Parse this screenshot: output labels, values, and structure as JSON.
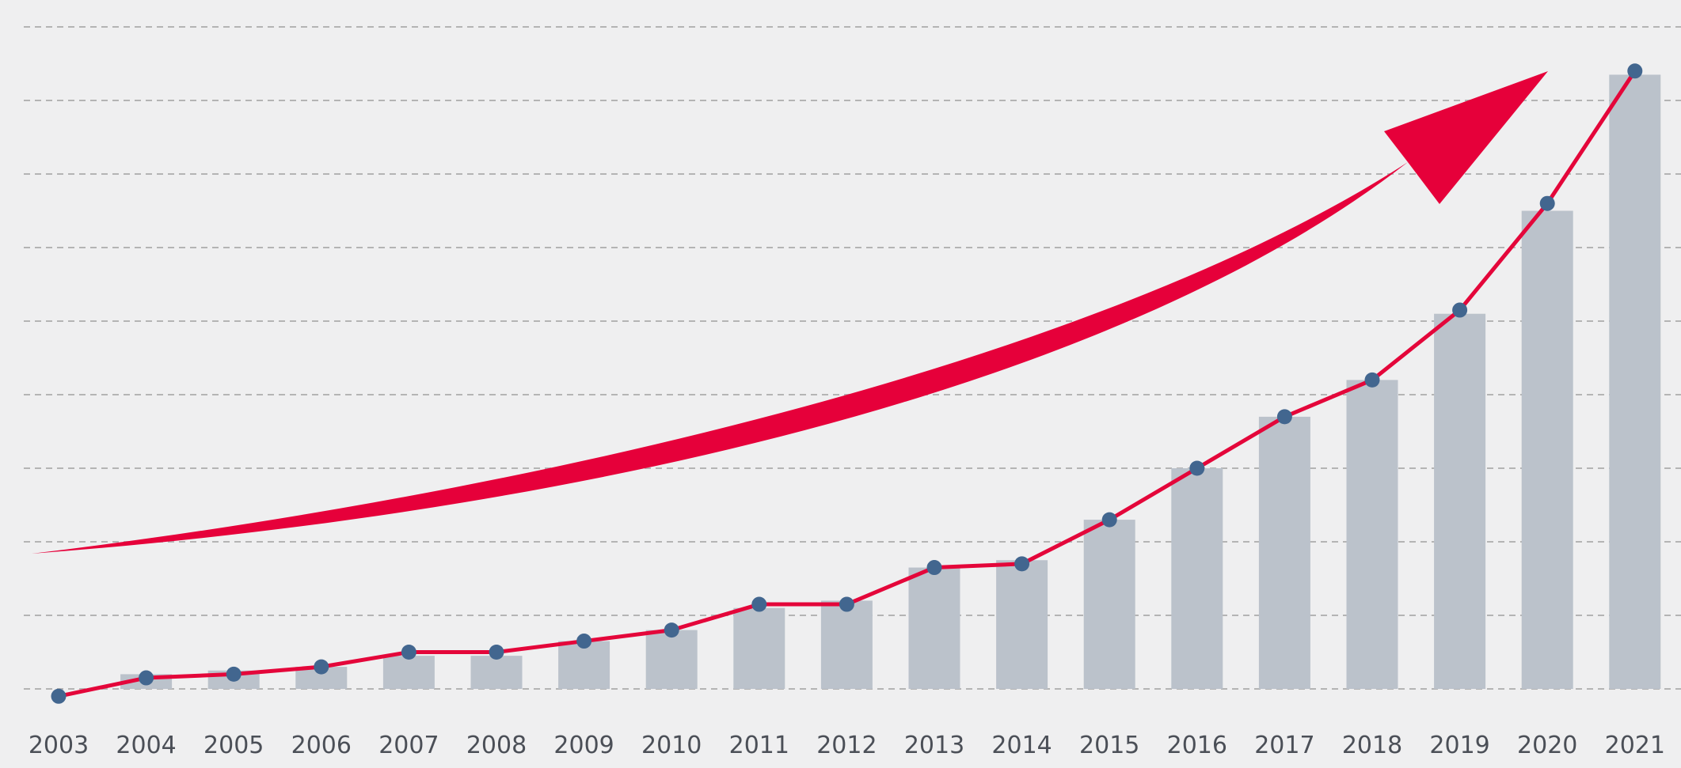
{
  "chart_data": {
    "type": "bar",
    "title": "",
    "xlabel": "",
    "ylabel": "",
    "categories": [
      "2003",
      "2004",
      "2005",
      "2006",
      "2007",
      "2008",
      "2009",
      "2010",
      "2011",
      "2012",
      "2013",
      "2014",
      "2015",
      "2016",
      "2017",
      "2018",
      "2019",
      "2020",
      "2021"
    ],
    "series": [
      {
        "type": "bar",
        "values": [
          -0.1,
          0.2,
          0.25,
          0.3,
          0.45,
          0.45,
          0.65,
          0.8,
          1.1,
          1.2,
          1.65,
          1.75,
          2.3,
          3.0,
          3.7,
          4.2,
          5.1,
          6.5,
          8.35
        ]
      },
      {
        "type": "line",
        "values": [
          -0.1,
          0.15,
          0.2,
          0.3,
          0.5,
          0.5,
          0.65,
          0.8,
          1.15,
          1.15,
          1.65,
          1.7,
          2.3,
          3.0,
          3.7,
          4.2,
          5.15,
          6.6,
          8.4
        ]
      }
    ],
    "ylim": [
      -0.7,
      9
    ],
    "y_gridlines": [
      0,
      1,
      2,
      3,
      4,
      5,
      6,
      7,
      8,
      9
    ],
    "grid": true,
    "legend": "none",
    "decoration": "red-upward-trend-arrow",
    "colors": {
      "bar": "#bbc2cb",
      "line": "#e4063a",
      "marker": "#42668f",
      "arrow": "#e6003a",
      "grid": "#b4b4b4",
      "background": "#efeff0"
    }
  }
}
